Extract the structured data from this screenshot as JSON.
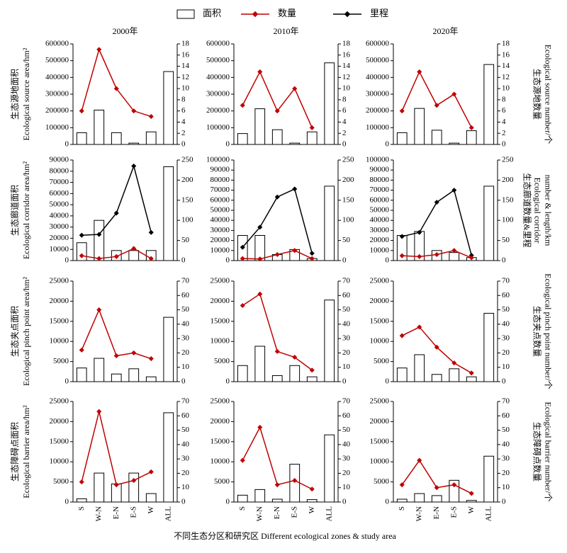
{
  "chart_data": {
    "type": "bar-line",
    "series": [
      {
        "name": "面积",
        "color": "#ffffff"
      },
      {
        "name": "数量",
        "color": "#c00000"
      },
      {
        "name": "里程",
        "color": "#000000"
      }
    ],
    "columns": [
      "2000年",
      "2010年",
      "2020年"
    ],
    "categories": [
      "S",
      "W-N",
      "E-N",
      "E-S",
      "W",
      "ALL"
    ],
    "xlabel": "不同生态分区和研究区 Different ecological zones & study area",
    "rows": [
      {
        "ylabel": [
          "生态源地面积",
          "Ecological source area/hm²"
        ],
        "y2label": [
          "生态源地数量",
          "Ecological source number/个"
        ],
        "panels": [
          {
            "ylim": [
              0,
              600000
            ],
            "yticks": [
              0,
              100000,
              200000,
              300000,
              400000,
              500000,
              600000
            ],
            "y2lim": [
              0,
              18
            ],
            "y2ticks": [
              0,
              2,
              4,
              6,
              8,
              10,
              12,
              14,
              16,
              18
            ],
            "area": [
              70000,
              205000,
              70000,
              8000,
              75000,
              435000
            ],
            "count": [
              6,
              17,
              10,
              6,
              5,
              null
            ]
          },
          {
            "ylim": [
              0,
              600000
            ],
            "yticks": [
              0,
              100000,
              200000,
              300000,
              400000,
              500000,
              600000
            ],
            "y2lim": [
              0,
              18
            ],
            "y2ticks": [
              0,
              2,
              4,
              6,
              8,
              10,
              12,
              14,
              16,
              18
            ],
            "area": [
              65000,
              213000,
              88000,
              8000,
              75000,
              487000
            ],
            "count": [
              7,
              13,
              6,
              10,
              3,
              null
            ]
          },
          {
            "ylim": [
              0,
              600000
            ],
            "yticks": [
              0,
              100000,
              200000,
              300000,
              400000,
              500000,
              600000
            ],
            "y2lim": [
              0,
              18
            ],
            "y2ticks": [
              0,
              2,
              4,
              6,
              8,
              10,
              12,
              14,
              16,
              18
            ],
            "area": [
              70000,
              215000,
              85000,
              8000,
              82000,
              477000
            ],
            "count": [
              6,
              13,
              7,
              9,
              3,
              null
            ]
          }
        ]
      },
      {
        "ylabel": [
          "生态廊道面积",
          "Ecological corridor area/hm²"
        ],
        "y2label": [
          "生态廊道数量&里程",
          "Ecological corridor",
          "number & length/km"
        ],
        "panels": [
          {
            "ylim": [
              0,
              90000
            ],
            "yticks": [
              0,
              10000,
              20000,
              30000,
              40000,
              50000,
              60000,
              70000,
              80000,
              90000
            ],
            "y2lim": [
              0,
              250
            ],
            "y2ticks": [
              0,
              50,
              100,
              150,
              200,
              250
            ],
            "area": [
              16000,
              36000,
              9000,
              9000,
              9000,
              84000
            ],
            "count": [
              12,
              5,
              10,
              30,
              5,
              null
            ],
            "length": [
              63,
              65,
              118,
              235,
              70,
              null
            ]
          },
          {
            "ylim": [
              0,
              100000
            ],
            "yticks": [
              0,
              10000,
              20000,
              30000,
              40000,
              50000,
              60000,
              70000,
              80000,
              90000,
              100000
            ],
            "y2lim": [
              0,
              250
            ],
            "y2ticks": [
              0,
              50,
              100,
              150,
              200,
              250
            ],
            "area": [
              25000,
              25000,
              6000,
              11000,
              2000,
              74000
            ],
            "count": [
              5,
              4,
              15,
              25,
              5,
              null
            ],
            "length": [
              33,
              83,
              158,
              178,
              18,
              null
            ]
          },
          {
            "ylim": [
              0,
              100000
            ],
            "yticks": [
              0,
              10000,
              20000,
              30000,
              40000,
              50000,
              60000,
              70000,
              80000,
              90000,
              100000
            ],
            "y2lim": [
              0,
              250
            ],
            "y2ticks": [
              0,
              50,
              100,
              150,
              200,
              250
            ],
            "area": [
              25000,
              29000,
              10000,
              8000,
              3000,
              74000
            ],
            "count": [
              12,
              10,
              15,
              25,
              7,
              null
            ],
            "length": [
              60,
              70,
              145,
              175,
              13,
              null
            ]
          }
        ]
      },
      {
        "ylabel": [
          "生态夹点面积",
          "Ecological pinch point area/hm²"
        ],
        "y2label": [
          "生态夹点数量",
          "Ecological pinch point number/个"
        ],
        "panels": [
          {
            "ylim": [
              0,
              25000
            ],
            "yticks": [
              0,
              5000,
              10000,
              15000,
              20000,
              25000
            ],
            "y2lim": [
              0,
              70
            ],
            "y2ticks": [
              0,
              10,
              20,
              30,
              40,
              50,
              60,
              70
            ],
            "area": [
              3400,
              5800,
              1900,
              3200,
              1200,
              16000
            ],
            "count": [
              22,
              50,
              18,
              20,
              16,
              null
            ]
          },
          {
            "ylim": [
              0,
              25000
            ],
            "yticks": [
              0,
              5000,
              10000,
              15000,
              20000,
              25000
            ],
            "y2lim": [
              0,
              70
            ],
            "y2ticks": [
              0,
              10,
              20,
              30,
              40,
              50,
              60,
              70
            ],
            "area": [
              4000,
              8800,
              1500,
              4000,
              1200,
              20300
            ],
            "count": [
              53,
              61,
              21,
              17,
              8,
              null
            ]
          },
          {
            "ylim": [
              0,
              25000
            ],
            "yticks": [
              0,
              5000,
              10000,
              15000,
              20000,
              25000
            ],
            "y2lim": [
              0,
              70
            ],
            "y2ticks": [
              0,
              10,
              20,
              30,
              40,
              50,
              60,
              70
            ],
            "area": [
              3400,
              6700,
              1800,
              3200,
              1200,
              17000
            ],
            "count": [
              32,
              38,
              24,
              13,
              6,
              null
            ]
          }
        ]
      },
      {
        "ylabel": [
          "生态障碍点面积",
          "Ecological barrier area/hm²"
        ],
        "y2label": [
          "生态障碍点数量",
          "Ecological barrier number/个"
        ],
        "panels": [
          {
            "ylim": [
              0,
              25000
            ],
            "yticks": [
              0,
              5000,
              10000,
              15000,
              20000,
              25000
            ],
            "y2lim": [
              0,
              70
            ],
            "y2ticks": [
              0,
              10,
              20,
              30,
              40,
              50,
              60,
              70
            ],
            "area": [
              800,
              7200,
              4500,
              7200,
              2100,
              22200
            ],
            "count": [
              14,
              63,
              12,
              15,
              21,
              null
            ]
          },
          {
            "ylim": [
              0,
              25000
            ],
            "yticks": [
              0,
              5000,
              10000,
              15000,
              20000,
              25000
            ],
            "y2lim": [
              0,
              70
            ],
            "y2ticks": [
              0,
              10,
              20,
              30,
              40,
              50,
              60,
              70
            ],
            "area": [
              1700,
              3100,
              700,
              9400,
              600,
              16700
            ],
            "count": [
              29,
              52,
              12,
              15,
              9,
              null
            ]
          },
          {
            "ylim": [
              0,
              25000
            ],
            "yticks": [
              0,
              5000,
              10000,
              15000,
              20000,
              25000
            ],
            "y2lim": [
              0,
              70
            ],
            "y2ticks": [
              0,
              10,
              20,
              30,
              40,
              50,
              60,
              70
            ],
            "area": [
              700,
              2100,
              1600,
              5400,
              400,
              11400
            ],
            "count": [
              12,
              29,
              10,
              12,
              6,
              null
            ]
          }
        ]
      }
    ]
  }
}
